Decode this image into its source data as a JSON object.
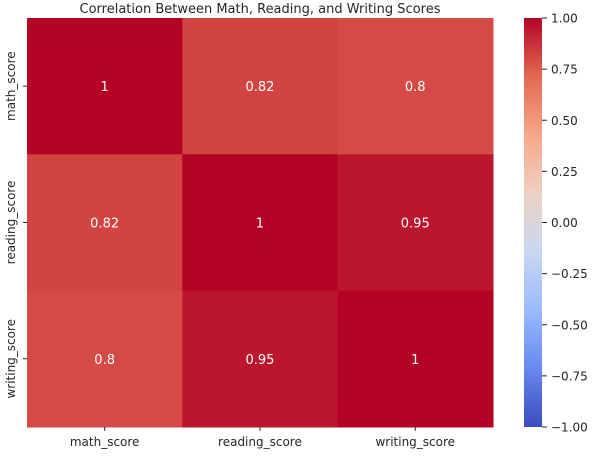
{
  "chart_data": {
    "type": "heatmap",
    "title": "Correlation Between Math, Reading, and Writing Scores",
    "x_labels": [
      "math_score",
      "reading_score",
      "writing_score"
    ],
    "y_labels": [
      "math_score",
      "reading_score",
      "writing_score"
    ],
    "values": [
      [
        1,
        0.82,
        0.8
      ],
      [
        0.82,
        1,
        0.95
      ],
      [
        0.8,
        0.95,
        1
      ]
    ],
    "annotations": [
      [
        "1",
        "0.82",
        "0.8"
      ],
      [
        "0.82",
        "1",
        "0.95"
      ],
      [
        "0.8",
        "0.95",
        "1"
      ]
    ],
    "colormap": "coolwarm",
    "vmin": -1.0,
    "vmax": 1.0,
    "colorbar_ticks": [
      "−1.00",
      "−0.75",
      "−0.50",
      "−0.25",
      "0.00",
      "0.25",
      "0.50",
      "0.75",
      "1.00"
    ],
    "colorbar_tick_values": [
      -1.0,
      -0.75,
      -0.5,
      -0.25,
      0.0,
      0.25,
      0.5,
      0.75,
      1.0
    ],
    "colormap_stops": [
      "#3b4cc0",
      "#6788ee",
      "#9abbff",
      "#c9d7f0",
      "#edd1c2",
      "#f7a789",
      "#e26952",
      "#b40426"
    ]
  }
}
